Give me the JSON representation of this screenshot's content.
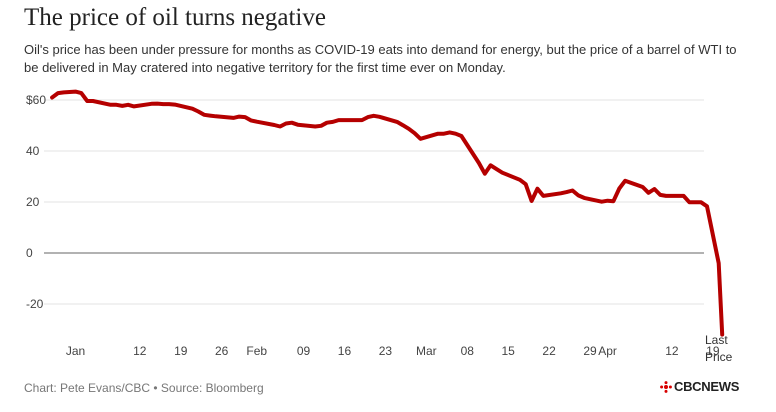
{
  "chart_data": {
    "type": "line",
    "title": "The price of oil turns negative",
    "subtitle": "Oil's price has been under pressure for months as COVID-19 eats into demand for energy, but the price of a barrel of WTI to be delivered in May cratered into negative territory for the first time ever on Monday.",
    "xlabel": "",
    "ylabel": "",
    "ylim": [
      -33,
      64
    ],
    "y_ticks": [
      {
        "value": 60,
        "label": "$60"
      },
      {
        "value": 40,
        "label": "40"
      },
      {
        "value": 20,
        "label": "20"
      },
      {
        "value": 0,
        "label": "0"
      },
      {
        "value": -20,
        "label": "-20"
      }
    ],
    "x_ticks": [
      {
        "day": 0,
        "label": "Jan"
      },
      {
        "day": 11,
        "label": "12"
      },
      {
        "day": 18,
        "label": "19"
      },
      {
        "day": 25,
        "label": "26"
      },
      {
        "day": 31,
        "label": "Feb"
      },
      {
        "day": 39,
        "label": "09"
      },
      {
        "day": 46,
        "label": "16"
      },
      {
        "day": 53,
        "label": "23"
      },
      {
        "day": 60,
        "label": "Mar"
      },
      {
        "day": 67,
        "label": "08"
      },
      {
        "day": 74,
        "label": "15"
      },
      {
        "day": 81,
        "label": "22"
      },
      {
        "day": 88,
        "label": "29"
      },
      {
        "day": 91,
        "label": "Apr"
      },
      {
        "day": 102,
        "label": "12"
      },
      {
        "day": 109,
        "label": "19"
      }
    ],
    "grid": true,
    "color": "#b50000",
    "series": [
      {
        "name": "",
        "x": [
          -4,
          -3,
          -2,
          0,
          1,
          2,
          3,
          6,
          7,
          8,
          9,
          10,
          13,
          14,
          15,
          16,
          17,
          20,
          21,
          22,
          23,
          24,
          27,
          28,
          29,
          30,
          31,
          34,
          35,
          36,
          37,
          38,
          41,
          42,
          43,
          44,
          45,
          48,
          49,
          50,
          51,
          52,
          55,
          56,
          57,
          58,
          59,
          62,
          63,
          64,
          65,
          66,
          69,
          70,
          71,
          72,
          73,
          76,
          77,
          78,
          79,
          80,
          83,
          84,
          85,
          86,
          87,
          90,
          91,
          92,
          93,
          94,
          97,
          98,
          99,
          100,
          101,
          104,
          105,
          106,
          107,
          108,
          110,
          110.6
        ],
        "y": [
          61,
          62.7,
          63,
          63.3,
          62.7,
          59.6,
          59.6,
          58.1,
          58.1,
          57.7,
          58.1,
          57.5,
          58.5,
          58.6,
          58.4,
          58.4,
          58.2,
          56.6,
          55.5,
          54.2,
          53.9,
          53.6,
          53.0,
          53.5,
          53.3,
          52.0,
          51.5,
          50.2,
          49.6,
          50.8,
          51.1,
          50.3,
          49.6,
          49.9,
          51.1,
          51.4,
          52.1,
          52.1,
          52.1,
          53.3,
          53.8,
          53.4,
          51.4,
          50.1,
          48.7,
          47.0,
          44.8,
          46.8,
          46.8,
          47.3,
          46.8,
          45.9,
          35.3,
          31.1,
          34.4,
          32.9,
          31.5,
          28.7,
          27.0,
          20.4,
          25.2,
          22.4,
          23.4,
          23.9,
          24.5,
          22.6,
          21.6,
          20.1,
          20.5,
          20.3,
          25.3,
          28.3,
          25.9,
          23.6,
          25.1,
          22.8,
          22.4,
          22.4,
          19.9,
          19.9,
          19.9,
          18.3,
          -4,
          -32
        ]
      }
    ],
    "annotation": "Last Price",
    "credit": "Chart: Pete Evans/CBC • Source: Bloomberg",
    "logo_text": "CBCNEWS"
  }
}
